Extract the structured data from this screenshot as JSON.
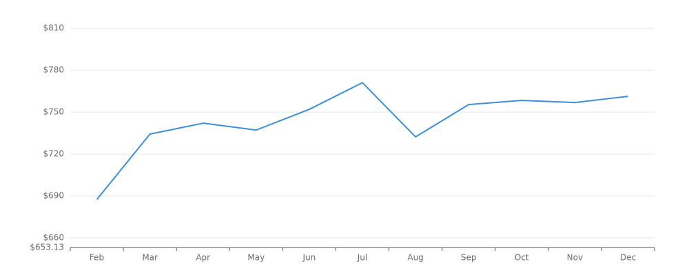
{
  "chart_data": {
    "type": "line",
    "categories": [
      "Feb",
      "Mar",
      "Apr",
      "May",
      "Jun",
      "Jul",
      "Aug",
      "Sep",
      "Oct",
      "Nov",
      "Dec"
    ],
    "values": [
      687.5,
      734.3,
      742.1,
      737.2,
      752.0,
      771.1,
      732.3,
      755.4,
      758.4,
      756.9,
      761.3
    ],
    "color": "#3a8fdd",
    "ylim": [
      653.13,
      815
    ],
    "yticks": [
      {
        "value": 653.13,
        "label": "$653.13"
      },
      {
        "value": 660,
        "label": "$660"
      },
      {
        "value": 690,
        "label": "$690"
      },
      {
        "value": 720,
        "label": "$720"
      },
      {
        "value": 750,
        "label": "$750"
      },
      {
        "value": 780,
        "label": "$780"
      },
      {
        "value": 810,
        "label": "$810"
      }
    ],
    "grid": true
  }
}
